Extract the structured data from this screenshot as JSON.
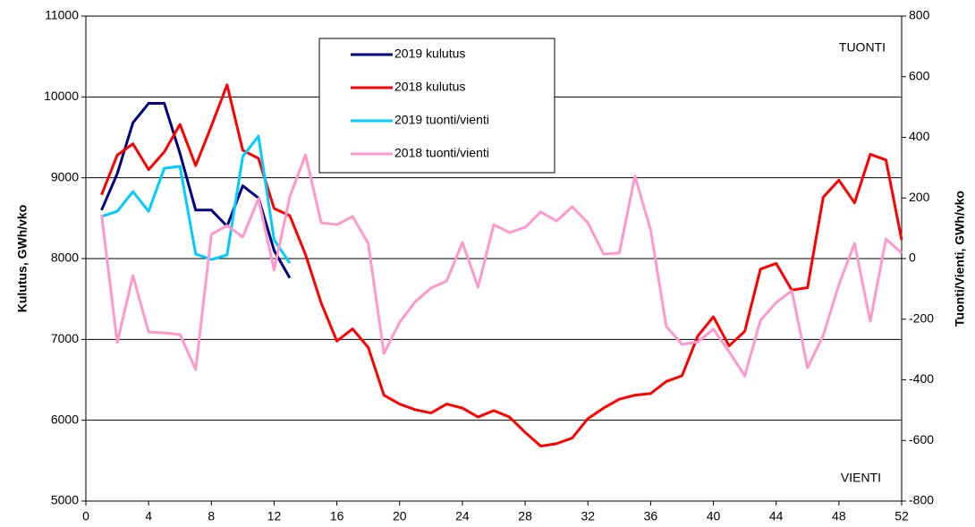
{
  "chart_data": {
    "type": "line",
    "x_label": null,
    "ylabel": "Kulutus,  GWh/vko",
    "y2label": "Tuonti/Vienti, GWh/vko",
    "annotations": [
      "TUONTI",
      "VIENTI"
    ],
    "xlim": [
      0,
      52
    ],
    "xticks": [
      0,
      4,
      8,
      12,
      16,
      20,
      24,
      28,
      32,
      36,
      40,
      44,
      48,
      52
    ],
    "ylim": [
      5000,
      11000
    ],
    "yticks": [
      5000,
      6000,
      7000,
      8000,
      9000,
      10000,
      11000
    ],
    "y2lim": [
      -800,
      800
    ],
    "y2ticks": [
      -800,
      -600,
      -400,
      -200,
      0,
      200,
      400,
      600,
      800
    ],
    "grid": true,
    "legend": "top",
    "series": [
      {
        "name": "2019 kulutus",
        "color": "#000080",
        "x": [
          1,
          2,
          3,
          4,
          5,
          6,
          7,
          8,
          9,
          10,
          11,
          12,
          13
        ],
        "values": [
          8600,
          9050,
          9680,
          9920,
          9920,
          9300,
          8600,
          8600,
          8400,
          8900,
          8750,
          8100,
          7760
        ]
      },
      {
        "name": "2018 kulutus",
        "color": "#ff0000",
        "x": [
          1,
          2,
          3,
          4,
          5,
          6,
          7,
          8,
          9,
          10,
          11,
          12,
          13,
          14,
          15,
          16,
          17,
          18,
          19,
          20,
          21,
          22,
          23,
          24,
          25,
          26,
          27,
          28,
          29,
          30,
          31,
          32,
          33,
          34,
          35,
          36,
          37,
          38,
          39,
          40,
          41,
          42,
          43,
          44,
          45,
          46,
          47,
          48,
          49,
          50,
          51,
          52
        ],
        "values": [
          8790,
          9280,
          9420,
          9100,
          9320,
          9660,
          9150,
          9640,
          10150,
          9340,
          9240,
          8620,
          8530,
          8050,
          7450,
          6980,
          7130,
          6900,
          6310,
          6200,
          6130,
          6090,
          6200,
          6150,
          6040,
          6120,
          6040,
          5850,
          5680,
          5710,
          5780,
          6020,
          6150,
          6260,
          6310,
          6330,
          6480,
          6550,
          7040,
          7280,
          6920,
          7100,
          7870,
          7940,
          7610,
          7640,
          8760,
          8970,
          8690,
          9290,
          9220,
          8230
        ]
      },
      {
        "name": "2019 tuonti/vienti",
        "color": "#00ccff",
        "axis": "y2",
        "x": [
          1,
          2,
          3,
          4,
          5,
          6,
          7,
          8,
          9,
          10,
          11,
          12,
          13
        ],
        "values": [
          139,
          156,
          221,
          156,
          298,
          304,
          15,
          -3,
          12,
          337,
          404,
          62,
          -15
        ]
      },
      {
        "name": "2018 tuonti/vienti",
        "color": "#ff99cc",
        "axis": "y2",
        "x": [
          1,
          2,
          3,
          4,
          5,
          6,
          7,
          8,
          9,
          10,
          11,
          12,
          13,
          14,
          15,
          16,
          17,
          18,
          19,
          20,
          21,
          22,
          23,
          24,
          25,
          26,
          27,
          28,
          29,
          30,
          31,
          32,
          33,
          34,
          35,
          36,
          37,
          38,
          39,
          40,
          41,
          42,
          43,
          44,
          45,
          46,
          47,
          48,
          49,
          50,
          51,
          52
        ],
        "values": [
          145,
          -277,
          -56,
          -242,
          -245,
          -251,
          -366,
          80,
          109,
          71,
          198,
          -38,
          204,
          342,
          118,
          112,
          139,
          50,
          -313,
          -210,
          -142,
          -97,
          -74,
          53,
          -94,
          112,
          86,
          103,
          154,
          124,
          171,
          118,
          15,
          18,
          272,
          94,
          -224,
          -283,
          -275,
          -233,
          -307,
          -387,
          -204,
          -145,
          -106,
          -360,
          -254,
          -86,
          50,
          -207,
          65,
          18
        ]
      }
    ]
  }
}
